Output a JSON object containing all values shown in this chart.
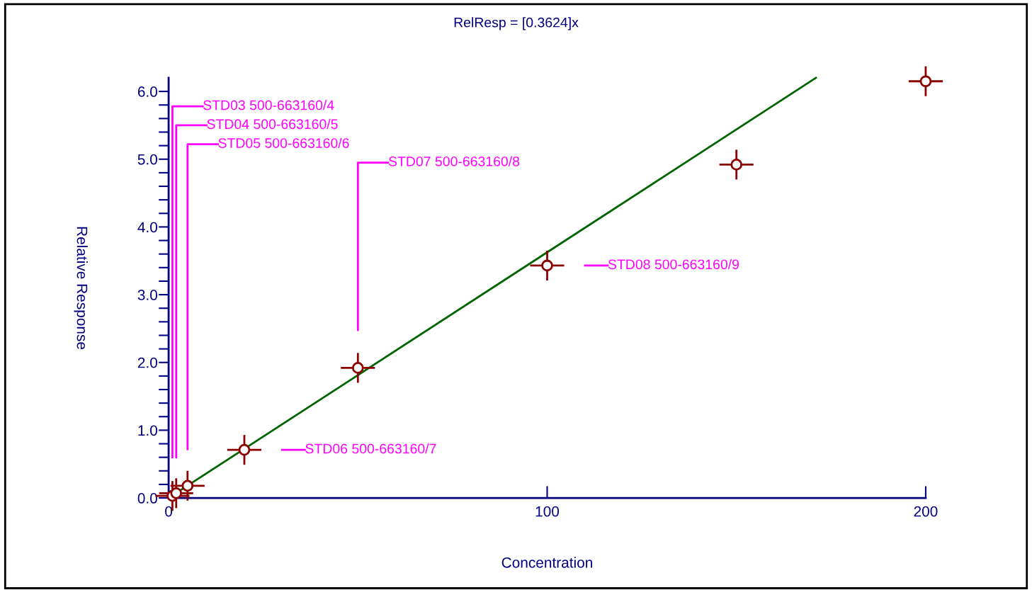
{
  "chart_data": {
    "type": "scatter",
    "title": "RelResp = [0.3624]x",
    "xlabel": "Concentration",
    "ylabel": "Relative Response",
    "xlim": [
      0,
      200
    ],
    "ylim": [
      0,
      6.2
    ],
    "xticks": [
      0,
      100,
      200
    ],
    "yticks": [
      {
        "value": 0,
        "label": "0.0"
      },
      {
        "value": 0.2,
        "label": null
      },
      {
        "value": 0.4,
        "label": null
      },
      {
        "value": 0.6,
        "label": null
      },
      {
        "value": 0.8,
        "label": null
      },
      {
        "value": 1,
        "label": "1.0"
      },
      {
        "value": 1.2,
        "label": null
      },
      {
        "value": 1.4,
        "label": null
      },
      {
        "value": 1.6,
        "label": null
      },
      {
        "value": 1.8,
        "label": null
      },
      {
        "value": 2,
        "label": "2.0"
      },
      {
        "value": 2.2,
        "label": null
      },
      {
        "value": 2.4,
        "label": null
      },
      {
        "value": 2.6,
        "label": null
      },
      {
        "value": 2.8,
        "label": null
      },
      {
        "value": 3,
        "label": "3.0"
      },
      {
        "value": 3.2,
        "label": null
      },
      {
        "value": 3.4,
        "label": null
      },
      {
        "value": 3.6,
        "label": null
      },
      {
        "value": 3.8,
        "label": null
      },
      {
        "value": 4,
        "label": "4.0"
      },
      {
        "value": 4.2,
        "label": null
      },
      {
        "value": 4.4,
        "label": null
      },
      {
        "value": 4.6,
        "label": null
      },
      {
        "value": 4.8,
        "label": null
      },
      {
        "value": 5,
        "label": "5.0"
      },
      {
        "value": 5.2,
        "label": null
      },
      {
        "value": 5.4,
        "label": null
      },
      {
        "value": 5.6,
        "label": null
      },
      {
        "value": 5.8,
        "label": null
      },
      {
        "value": 6,
        "label": "6.0"
      }
    ],
    "grid": false,
    "legend": false,
    "series": [
      {
        "type": "line",
        "color": "#006400",
        "x": [
          0,
          171
        ],
        "values": [
          0,
          6.2
        ],
        "marker": "none"
      },
      {
        "color": "#8b0000",
        "marker": "circle",
        "x": [
          1,
          2,
          5,
          20,
          50,
          100,
          150,
          200
        ],
        "values": [
          0.03,
          0.07,
          0.18,
          0.71,
          1.92,
          3.43,
          4.92,
          6.15
        ],
        "errors": [
          0.22,
          0.22,
          0.22,
          0.22,
          0.22,
          0.22,
          0.22,
          0.22
        ],
        "xerrors": [
          4.5,
          4.5,
          4.5,
          4.5,
          4.5,
          4.5,
          4.5,
          4.5
        ]
      }
    ],
    "annotations": [
      "STD03 500-663160/4",
      "STD04 500-663160/5",
      "STD05 500-663160/6",
      "STD06 500-663160/7",
      "STD07 500-663160/8",
      "STD08 500-663160/9"
    ]
  }
}
